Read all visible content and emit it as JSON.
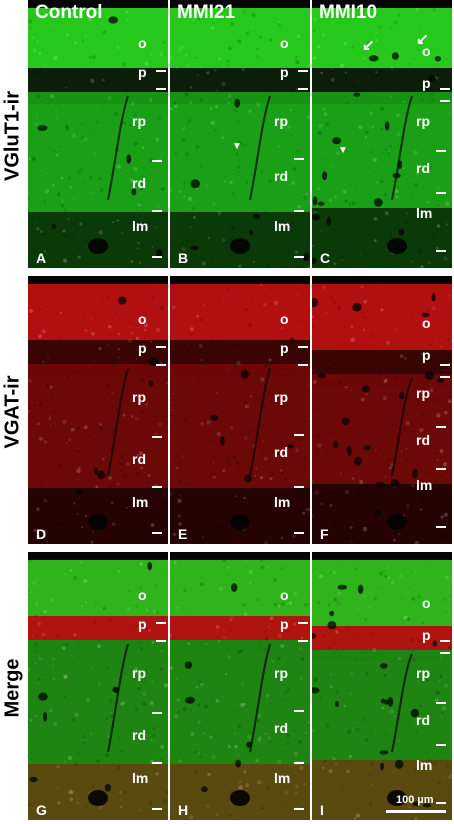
{
  "columns": [
    "Control",
    "MMI21",
    "MMI10"
  ],
  "rows": [
    {
      "label": "VGluT1-ir",
      "channel": "green",
      "colors": {
        "bright": "#27c81c",
        "mid": "#1aa016",
        "dark": "#0a3a08",
        "band": "#0b2b08"
      }
    },
    {
      "label": "VGAT-ir",
      "channel": "red",
      "colors": {
        "bright": "#b21010",
        "mid": "#6d0808",
        "dark": "#260303",
        "band": "#3a0404"
      }
    },
    {
      "label": "Merge",
      "channel": "merge",
      "colors": {
        "bright": "#2fb41c",
        "mid": "#1e8412",
        "dark": "#3a1e08",
        "band": "#b01410"
      }
    }
  ],
  "panel_letters": [
    "A",
    "B",
    "C",
    "D",
    "E",
    "F",
    "G",
    "H",
    "I"
  ],
  "layers": [
    "o",
    "p",
    "rp",
    "rd",
    "lm"
  ],
  "scale_bar": "100 µm",
  "annotations": {
    "arrows": "white arrows mark cells in MMI10 VGluT1 panel",
    "arrowheads": "white arrowheads in panels B and C"
  }
}
